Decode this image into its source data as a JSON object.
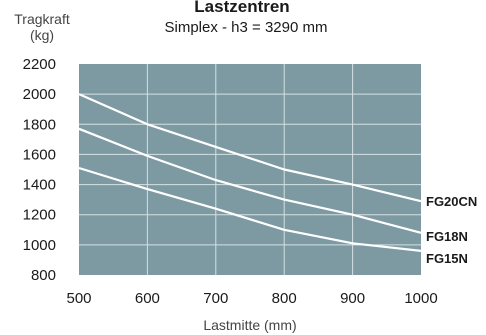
{
  "chart_data": {
    "type": "line",
    "title": "Lastzentren",
    "subtitle": "Simplex - h3 = 3290 mm",
    "ylabel_line1": "Tragkraft",
    "ylabel_line2": "(kg)",
    "xlabel": "Lastmitte (mm)",
    "xlim": [
      500,
      1000
    ],
    "ylim": [
      800,
      2200
    ],
    "xticks": [
      500,
      600,
      700,
      800,
      900,
      1000
    ],
    "yticks": [
      800,
      1000,
      1200,
      1400,
      1600,
      1800,
      2000,
      2200
    ],
    "grid": true,
    "series": [
      {
        "name": "FG20CN",
        "x": [
          500,
          600,
          700,
          800,
          900,
          1000
        ],
        "values": [
          2000,
          1800,
          1650,
          1500,
          1400,
          1290
        ]
      },
      {
        "name": "FG18N",
        "x": [
          500,
          600,
          700,
          800,
          900,
          1000
        ],
        "values": [
          1770,
          1590,
          1430,
          1300,
          1200,
          1080
        ]
      },
      {
        "name": "FG15N",
        "x": [
          500,
          600,
          700,
          800,
          900,
          1000
        ],
        "values": [
          1510,
          1370,
          1240,
          1100,
          1010,
          960
        ]
      }
    ],
    "colors": {
      "plot_background": "#7d9aa3",
      "grid": "#d4e0e3",
      "series_line": "#ffffff"
    }
  }
}
